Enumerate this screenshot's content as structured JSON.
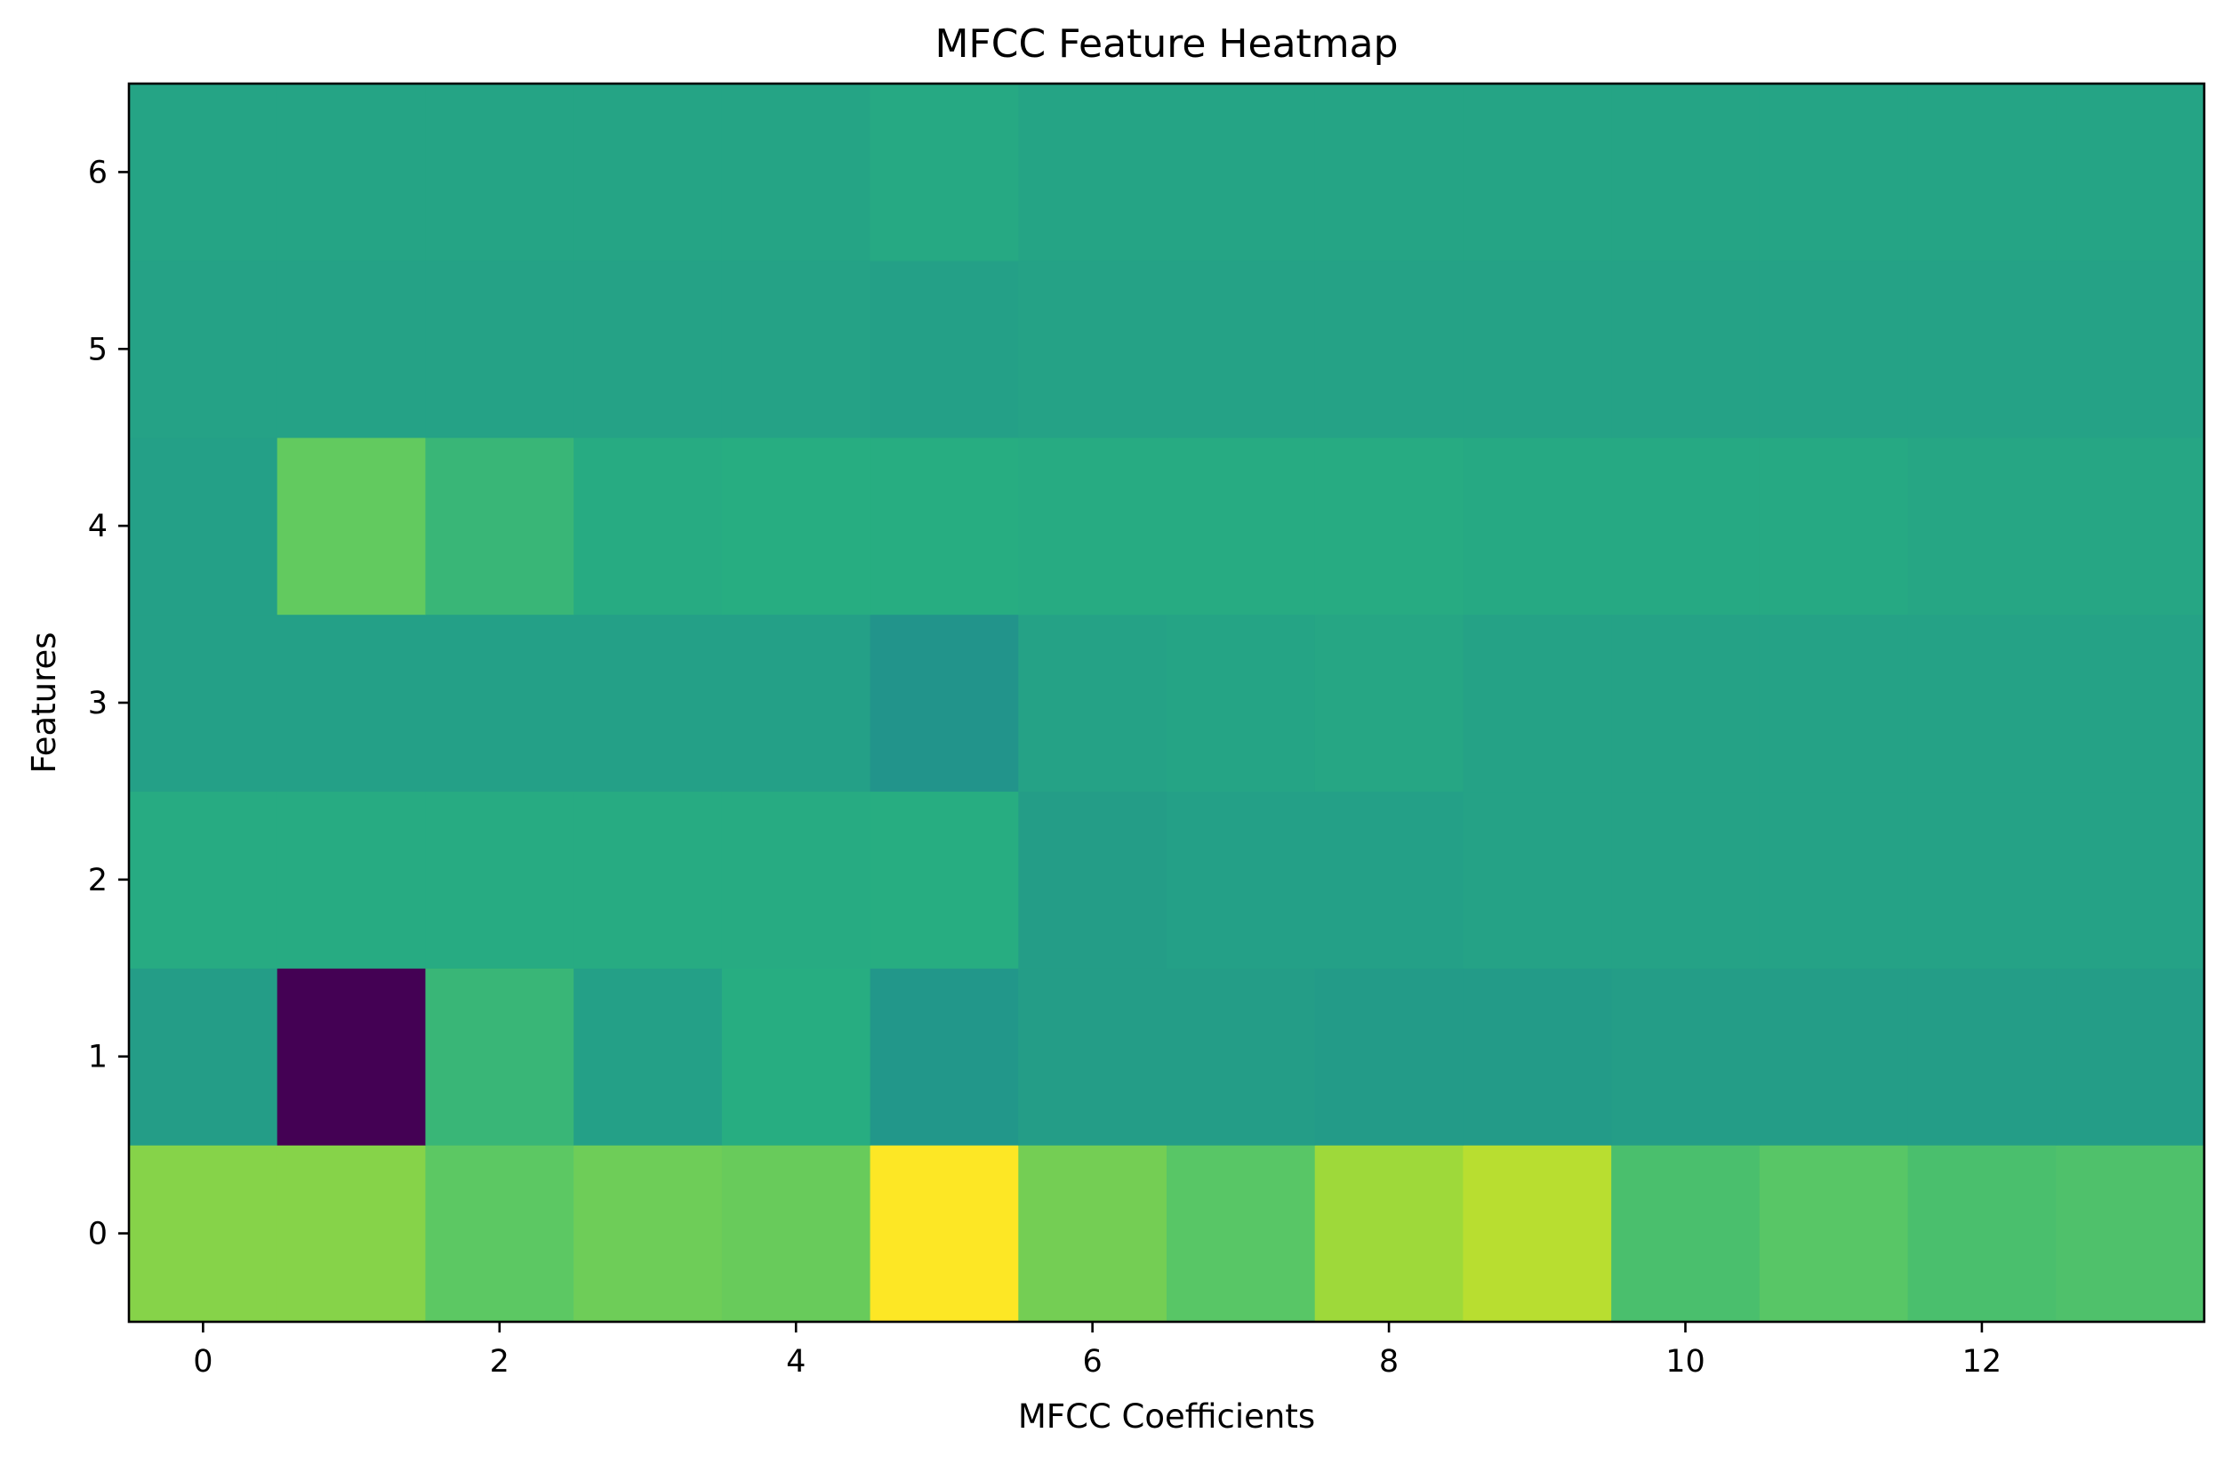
{
  "chart_data": {
    "type": "heatmap",
    "title": "MFCC Feature Heatmap",
    "xlabel": "MFCC Coefficients",
    "ylabel": "Features",
    "colormap": "viridis",
    "grid": false,
    "xlim": [
      -0.5,
      13.5
    ],
    "ylim": [
      -0.5,
      6.5
    ],
    "x_ticks": [
      0,
      2,
      4,
      6,
      8,
      10,
      12
    ],
    "y_ticks": [
      0,
      1,
      2,
      3,
      4,
      5,
      6
    ],
    "x": [
      0,
      1,
      2,
      3,
      4,
      5,
      6,
      7,
      8,
      9,
      10,
      11,
      12,
      13
    ],
    "y": [
      0,
      1,
      2,
      3,
      4,
      5,
      6
    ],
    "value_range": [
      0,
      1
    ],
    "values": [
      [
        0.82,
        0.82,
        0.75,
        0.78,
        0.77,
        1.0,
        0.79,
        0.74,
        0.86,
        0.9,
        0.71,
        0.74,
        0.71,
        0.72
      ],
      [
        0.56,
        0.0,
        0.67,
        0.57,
        0.63,
        0.53,
        0.56,
        0.56,
        0.55,
        0.55,
        0.56,
        0.56,
        0.56,
        0.56
      ],
      [
        0.62,
        0.62,
        0.62,
        0.62,
        0.62,
        0.63,
        0.56,
        0.57,
        0.57,
        0.58,
        0.58,
        0.58,
        0.58,
        0.58
      ],
      [
        0.57,
        0.57,
        0.57,
        0.57,
        0.57,
        0.52,
        0.58,
        0.59,
        0.6,
        0.58,
        0.58,
        0.58,
        0.58,
        0.58
      ],
      [
        0.57,
        0.76,
        0.67,
        0.62,
        0.63,
        0.63,
        0.62,
        0.62,
        0.62,
        0.61,
        0.61,
        0.61,
        0.6,
        0.6
      ],
      [
        0.58,
        0.58,
        0.58,
        0.58,
        0.58,
        0.57,
        0.58,
        0.58,
        0.58,
        0.58,
        0.58,
        0.58,
        0.58,
        0.58
      ],
      [
        0.59,
        0.59,
        0.59,
        0.59,
        0.59,
        0.61,
        0.59,
        0.59,
        0.59,
        0.59,
        0.59,
        0.59,
        0.59,
        0.59
      ]
    ]
  }
}
